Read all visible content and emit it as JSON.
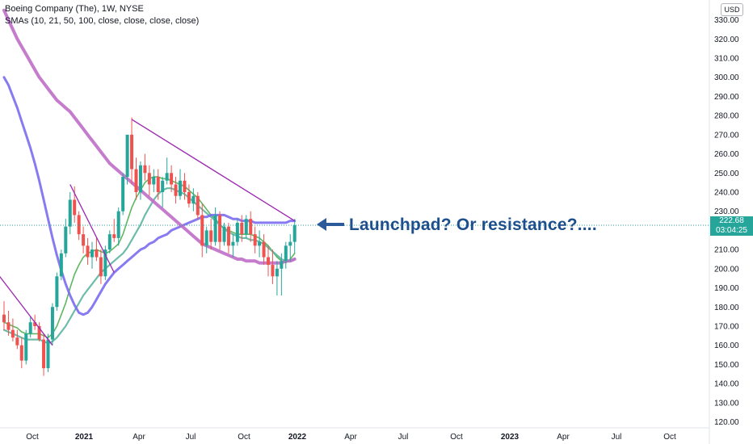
{
  "legend": {
    "title": "Boeing Company (The), 1W, NYSE",
    "indicators": "SMAs (10, 21, 50, 100, close, close, close, close)"
  },
  "currency": "USD",
  "last_price": "222.68",
  "countdown": "03:04:25",
  "annotation": "Launchpad? Or resistance?....",
  "colors": {
    "up": "#26a69a",
    "down": "#ef5350",
    "sma10": "#4caf50",
    "sma21": "#5db5a0",
    "sma50": "#7b6cf0",
    "sma100": "#c06ec8",
    "trendline": "#9c27b0",
    "annotation": "#1c4f8c"
  },
  "chart_data": {
    "type": "candlestick",
    "x_ticks": [
      "Oct",
      "2021",
      "Apr",
      "Jul",
      "Oct",
      "2022",
      "Apr",
      "Jul",
      "Oct",
      "2023",
      "Apr",
      "Jul",
      "Oct"
    ],
    "y_ticks": [
      120,
      130,
      140,
      150,
      160,
      170,
      180,
      190,
      200,
      210,
      220,
      230,
      240,
      250,
      260,
      270,
      280,
      290,
      300,
      310,
      320,
      330
    ],
    "y_tick_labels": [
      "120.00",
      "130.00",
      "140.00",
      "150.00",
      "160.00",
      "170.00",
      "180.00",
      "190.00",
      "200.00",
      "210.00",
      "220.00",
      "230.00",
      "240.00",
      "250.00",
      "260.00",
      "270.00",
      "280.00",
      "290.00",
      "300.00",
      "310.00",
      "320.00",
      "330.00"
    ],
    "ylim": [
      116,
      337
    ],
    "candles": [
      [
        176,
        183,
        168,
        172
      ],
      [
        172,
        178,
        165,
        168
      ],
      [
        168,
        174,
        162,
        164
      ],
      [
        164,
        168,
        158,
        160
      ],
      [
        160,
        164,
        148,
        152
      ],
      [
        152,
        168,
        150,
        166
      ],
      [
        166,
        175,
        164,
        172
      ],
      [
        172,
        176,
        168,
        170
      ],
      [
        170,
        172,
        162,
        163
      ],
      [
        163,
        166,
        144,
        148
      ],
      [
        148,
        166,
        146,
        163
      ],
      [
        163,
        182,
        160,
        180
      ],
      [
        180,
        198,
        178,
        196
      ],
      [
        196,
        210,
        194,
        208
      ],
      [
        208,
        226,
        206,
        222
      ],
      [
        222,
        240,
        218,
        236
      ],
      [
        236,
        243,
        224,
        228
      ],
      [
        228,
        230,
        215,
        218
      ],
      [
        218,
        222,
        208,
        212
      ],
      [
        212,
        216,
        202,
        206
      ],
      [
        206,
        214,
        200,
        210
      ],
      [
        210,
        216,
        204,
        206
      ],
      [
        206,
        210,
        192,
        196
      ],
      [
        196,
        212,
        194,
        210
      ],
      [
        210,
        220,
        208,
        218
      ],
      [
        218,
        226,
        214,
        216
      ],
      [
        216,
        232,
        212,
        230
      ],
      [
        230,
        250,
        228,
        248
      ],
      [
        248,
        268,
        244,
        270
      ],
      [
        270,
        279,
        244,
        252
      ],
      [
        252,
        258,
        236,
        240
      ],
      [
        240,
        256,
        236,
        254
      ],
      [
        254,
        260,
        246,
        250
      ],
      [
        250,
        254,
        238,
        244
      ],
      [
        244,
        252,
        240,
        248
      ],
      [
        248,
        252,
        236,
        240
      ],
      [
        240,
        248,
        232,
        246
      ],
      [
        246,
        258,
        244,
        250
      ],
      [
        250,
        254,
        240,
        244
      ],
      [
        244,
        248,
        234,
        238
      ],
      [
        238,
        252,
        236,
        246
      ],
      [
        246,
        250,
        236,
        240
      ],
      [
        240,
        244,
        232,
        234
      ],
      [
        234,
        242,
        230,
        238
      ],
      [
        238,
        240,
        226,
        228
      ],
      [
        228,
        234,
        206,
        212
      ],
      [
        212,
        222,
        208,
        220
      ],
      [
        220,
        226,
        210,
        214
      ],
      [
        214,
        232,
        212,
        228
      ],
      [
        228,
        230,
        210,
        214
      ],
      [
        214,
        224,
        212,
        222
      ],
      [
        222,
        224,
        208,
        212
      ],
      [
        212,
        218,
        206,
        214
      ],
      [
        214,
        226,
        212,
        224
      ],
      [
        224,
        228,
        214,
        218
      ],
      [
        218,
        228,
        216,
        226
      ],
      [
        226,
        230,
        214,
        218
      ],
      [
        218,
        222,
        208,
        212
      ],
      [
        212,
        220,
        206,
        214
      ],
      [
        214,
        218,
        202,
        206
      ],
      [
        206,
        212,
        196,
        202
      ],
      [
        202,
        210,
        192,
        196
      ],
      [
        196,
        204,
        186,
        200
      ],
      [
        200,
        208,
        186,
        204
      ],
      [
        204,
        214,
        200,
        212
      ],
      [
        212,
        218,
        204,
        214
      ],
      [
        214,
        226,
        208,
        222.68
      ]
    ],
    "series": [
      {
        "name": "SMA 10",
        "values": [
          172,
          171,
          170,
          169,
          167,
          166,
          166,
          166,
          166,
          165,
          164,
          166,
          170,
          176,
          182,
          190,
          197,
          202,
          206,
          208,
          209,
          210,
          209,
          208,
          209,
          211,
          213,
          218,
          225,
          232,
          237,
          241,
          245,
          247,
          248,
          248,
          247,
          247,
          246,
          245,
          244,
          243,
          241,
          239,
          237,
          234,
          231,
          228,
          226,
          223,
          221,
          220,
          219,
          218,
          218,
          218,
          218,
          217,
          216,
          214,
          212,
          209,
          206,
          204,
          203,
          205,
          208
        ]
      },
      {
        "name": "SMA 21",
        "values": [
          168,
          167,
          166,
          165,
          164,
          163,
          163,
          163,
          163,
          162,
          161,
          162,
          164,
          167,
          170,
          174,
          178,
          182,
          186,
          189,
          192,
          195,
          198,
          200,
          202,
          204,
          206,
          208,
          211,
          215,
          219,
          223,
          228,
          232,
          236,
          239,
          241,
          242,
          242,
          241,
          240,
          239,
          237,
          235,
          233,
          231,
          229,
          227,
          225,
          223,
          221,
          219,
          218,
          217,
          216,
          216,
          215,
          215,
          214,
          213,
          211,
          209,
          207,
          205,
          204,
          204,
          205
        ]
      },
      {
        "name": "SMA 50",
        "values": [
          300,
          296,
          290,
          284,
          277,
          270,
          263,
          255,
          246,
          236,
          226,
          216,
          207,
          199,
          192,
          186,
          181,
          177,
          176,
          177,
          180,
          184,
          188,
          192,
          195,
          198,
          200,
          202,
          204,
          206,
          208,
          210,
          211,
          213,
          214,
          216,
          217,
          218,
          220,
          221,
          222,
          223,
          224,
          225,
          226,
          227,
          227,
          228,
          228,
          228,
          228,
          227,
          226,
          226,
          225,
          225,
          225,
          224,
          224,
          224,
          224,
          224,
          224,
          224,
          224,
          225,
          225
        ]
      },
      {
        "name": "SMA 100",
        "values": [
          335,
          330,
          325,
          320,
          316,
          312,
          308,
          304,
          300,
          297,
          294,
          291,
          288,
          286,
          284,
          282,
          279,
          276,
          273,
          270,
          267,
          264,
          261,
          258,
          255,
          253,
          251,
          249,
          247,
          245,
          243,
          241,
          239,
          237,
          235,
          233,
          231,
          229,
          227,
          225,
          223,
          221,
          219,
          217,
          215,
          213,
          212,
          211,
          210,
          209,
          208,
          207,
          206,
          205,
          205,
          204,
          204,
          204,
          203,
          203,
          203,
          203,
          203,
          203,
          204,
          204,
          205
        ]
      }
    ],
    "trendlines": [
      {
        "from": [
          -4,
          205
        ],
        "to": [
          11,
          160
        ]
      },
      {
        "from": [
          15,
          244
        ],
        "to": [
          25,
          198
        ]
      },
      {
        "from": [
          29,
          278
        ],
        "to": [
          66,
          225
        ]
      }
    ]
  }
}
